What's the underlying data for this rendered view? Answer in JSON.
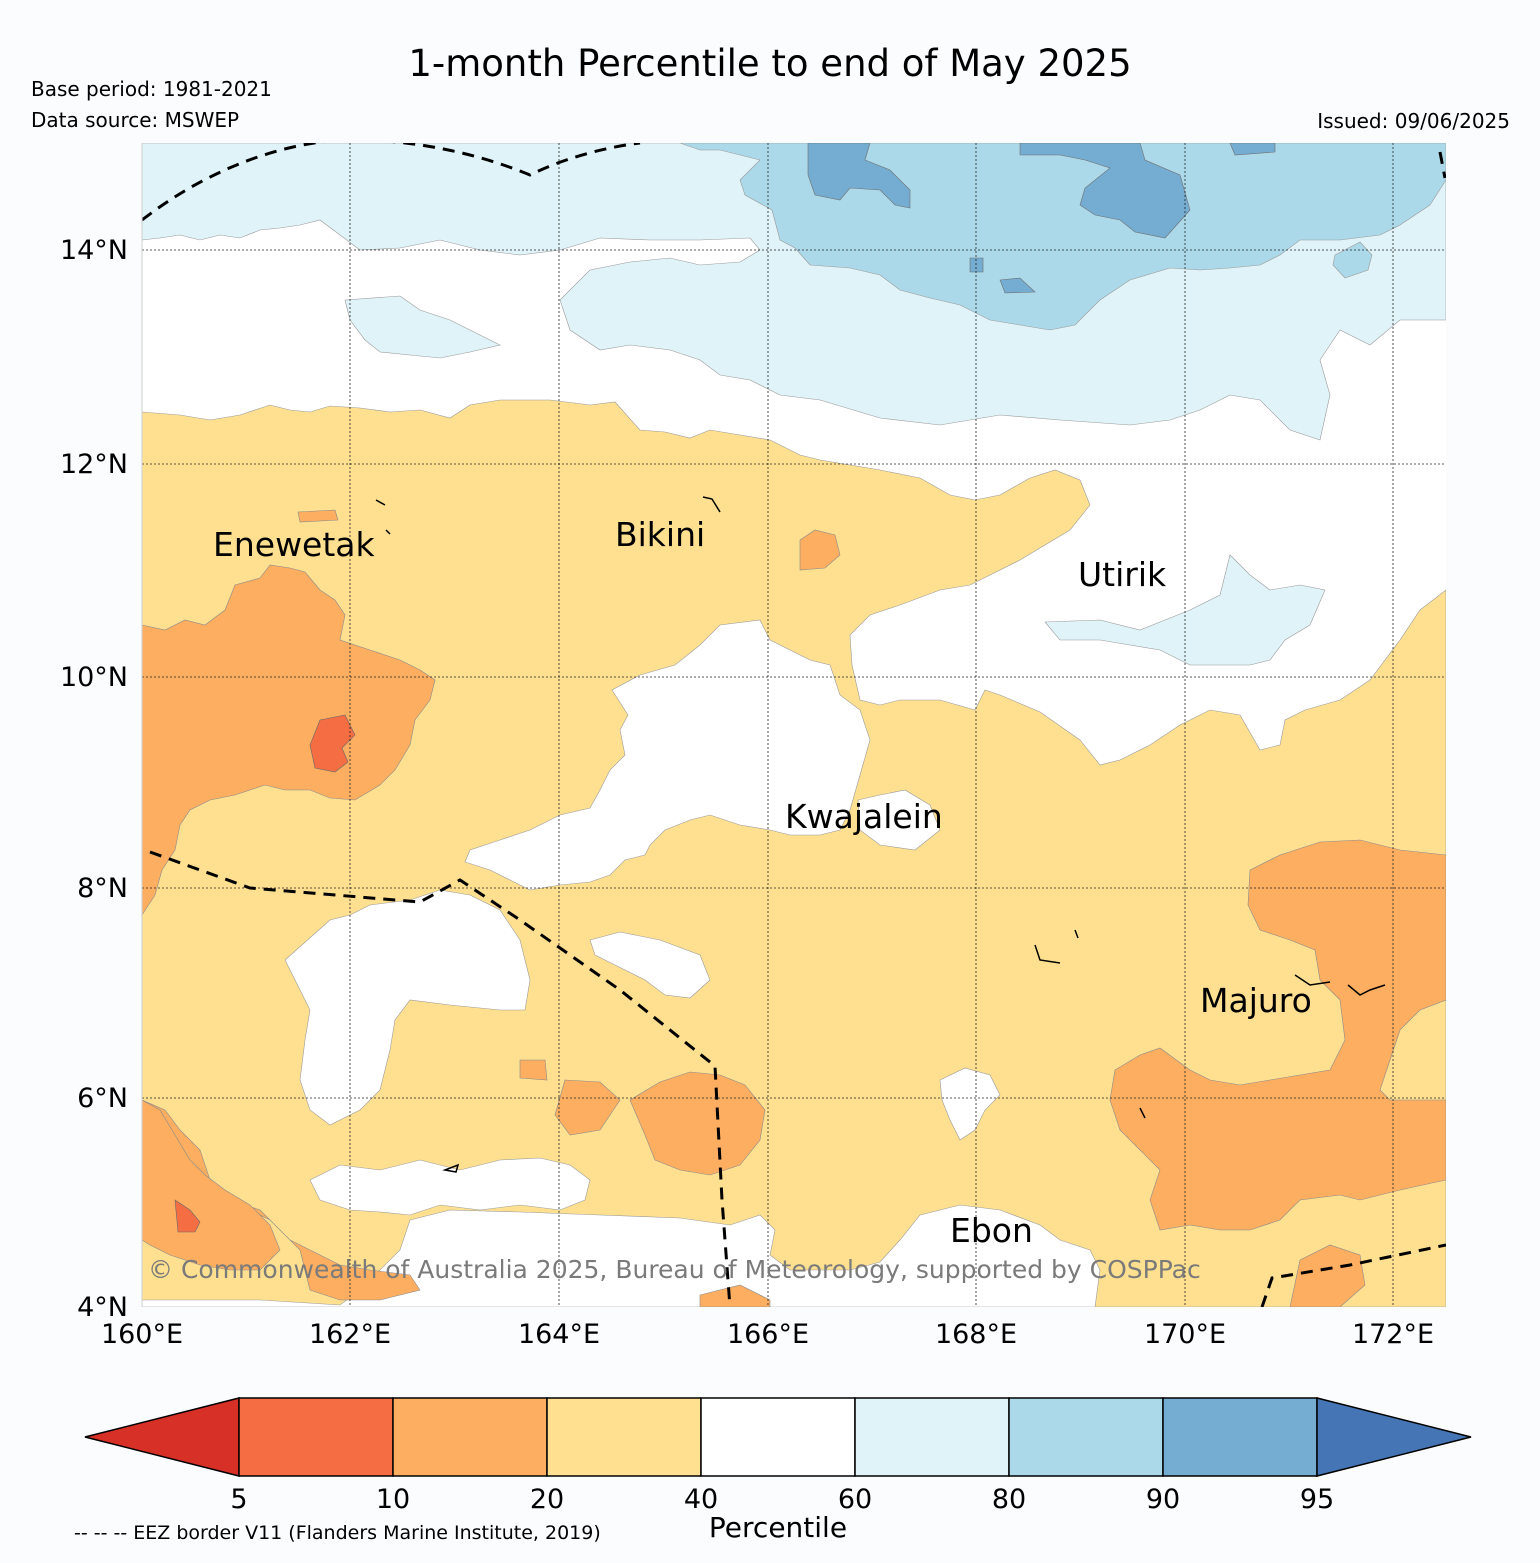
{
  "header": {
    "title": "1-month Percentile to end of May 2025",
    "base_period": "Base period: 1981-2021",
    "data_source": "Data source: MSWEP",
    "issued": "Issued: 09/06/2025"
  },
  "map": {
    "lon_range": [
      160,
      172.5
    ],
    "lat_range": [
      4,
      15
    ],
    "lon_ticks": [
      "160°E",
      "162°E",
      "164°E",
      "166°E",
      "168°E",
      "170°E",
      "172°E"
    ],
    "lat_ticks": [
      "14°N",
      "12°N",
      "10°N",
      "8°N",
      "6°N",
      "4°N"
    ],
    "places": [
      {
        "name": "Enewetak"
      },
      {
        "name": "Bikini"
      },
      {
        "name": "Utirik"
      },
      {
        "name": "Kwajalein"
      },
      {
        "name": "Majuro"
      },
      {
        "name": "Ebon"
      }
    ],
    "copyright": "© Commonwealth of Australia 2025, Bureau of Meteorology, supported by COSPPac",
    "grid": true
  },
  "colorbar": {
    "title": "Percentile",
    "ticks": [
      "5",
      "10",
      "20",
      "40",
      "60",
      "80",
      "90",
      "95"
    ],
    "colors": {
      "below_5": "#d73027",
      "5_10": "#f46d43",
      "10_20": "#fdae61",
      "20_40": "#fee090",
      "40_60": "#ffffff",
      "60_80": "#e0f3f8",
      "80_90": "#abd9e9",
      "90_95": "#74add1",
      "above_95": "#4575b4"
    }
  },
  "eez_note": "-- -- -- EEZ border V11 (Flanders Marine Institute, 2019)"
}
